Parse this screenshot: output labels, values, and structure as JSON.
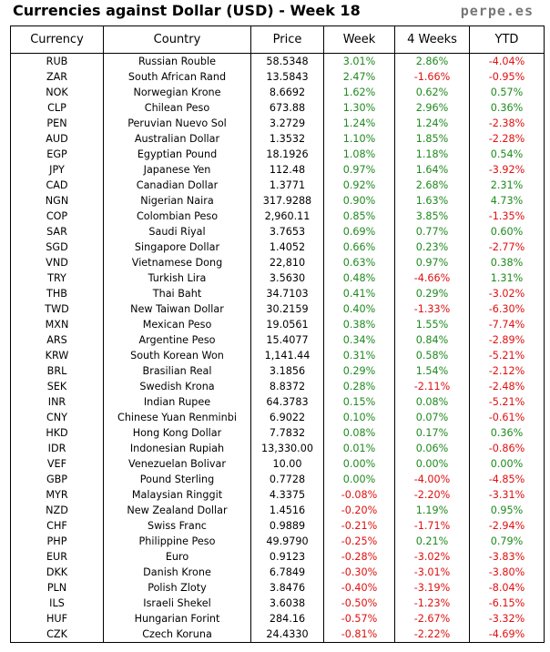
{
  "header": {
    "title": "Currencies against Dollar (USD) - Week 18",
    "brand": "perpe.es"
  },
  "table": {
    "columns": [
      "Currency",
      "Country",
      "Price",
      "Week",
      "4 Weeks",
      "YTD"
    ],
    "rows": [
      {
        "code": "RUB",
        "country": "Russian Rouble",
        "price": "58.5348",
        "week": "3.01%",
        "weeks4": "2.86%",
        "ytd": "-4.04%"
      },
      {
        "code": "ZAR",
        "country": "South African Rand",
        "price": "13.5843",
        "week": "2.47%",
        "weeks4": "-1.66%",
        "ytd": "-0.95%"
      },
      {
        "code": "NOK",
        "country": "Norwegian Krone",
        "price": "8.6692",
        "week": "1.62%",
        "weeks4": "0.62%",
        "ytd": "0.57%"
      },
      {
        "code": "CLP",
        "country": "Chilean Peso",
        "price": "673.88",
        "week": "1.30%",
        "weeks4": "2.96%",
        "ytd": "0.36%"
      },
      {
        "code": "PEN",
        "country": "Peruvian Nuevo Sol",
        "price": "3.2729",
        "week": "1.24%",
        "weeks4": "1.24%",
        "ytd": "-2.38%"
      },
      {
        "code": "AUD",
        "country": "Australian Dollar",
        "price": "1.3532",
        "week": "1.10%",
        "weeks4": "1.85%",
        "ytd": "-2.28%"
      },
      {
        "code": "EGP",
        "country": "Egyptian Pound",
        "price": "18.1926",
        "week": "1.08%",
        "weeks4": "1.18%",
        "ytd": "0.54%"
      },
      {
        "code": "JPY",
        "country": "Japanese Yen",
        "price": "112.48",
        "week": "0.97%",
        "weeks4": "1.64%",
        "ytd": "-3.92%"
      },
      {
        "code": "CAD",
        "country": "Canadian Dollar",
        "price": "1.3771",
        "week": "0.92%",
        "weeks4": "2.68%",
        "ytd": "2.31%"
      },
      {
        "code": "NGN",
        "country": "Nigerian Naira",
        "price": "317.9288",
        "week": "0.90%",
        "weeks4": "1.63%",
        "ytd": "4.73%"
      },
      {
        "code": "COP",
        "country": "Colombian Peso",
        "price": "2,960.11",
        "week": "0.85%",
        "weeks4": "3.85%",
        "ytd": "-1.35%"
      },
      {
        "code": "SAR",
        "country": "Saudi Riyal",
        "price": "3.7653",
        "week": "0.69%",
        "weeks4": "0.77%",
        "ytd": "0.60%"
      },
      {
        "code": "SGD",
        "country": "Singapore Dollar",
        "price": "1.4052",
        "week": "0.66%",
        "weeks4": "0.23%",
        "ytd": "-2.77%"
      },
      {
        "code": "VND",
        "country": "Vietnamese Dong",
        "price": "22,810",
        "week": "0.63%",
        "weeks4": "0.97%",
        "ytd": "0.38%"
      },
      {
        "code": "TRY",
        "country": "Turkish Lira",
        "price": "3.5630",
        "week": "0.48%",
        "weeks4": "-4.66%",
        "ytd": "1.31%"
      },
      {
        "code": "THB",
        "country": "Thai Baht",
        "price": "34.7103",
        "week": "0.41%",
        "weeks4": "0.29%",
        "ytd": "-3.02%"
      },
      {
        "code": "TWD",
        "country": "New Taiwan Dollar",
        "price": "30.2159",
        "week": "0.40%",
        "weeks4": "-1.33%",
        "ytd": "-6.30%"
      },
      {
        "code": "MXN",
        "country": "Mexican Peso",
        "price": "19.0561",
        "week": "0.38%",
        "weeks4": "1.55%",
        "ytd": "-7.74%"
      },
      {
        "code": "ARS",
        "country": "Argentine Peso",
        "price": "15.4077",
        "week": "0.34%",
        "weeks4": "0.84%",
        "ytd": "-2.89%"
      },
      {
        "code": "KRW",
        "country": "South Korean Won",
        "price": "1,141.44",
        "week": "0.31%",
        "weeks4": "0.58%",
        "ytd": "-5.21%"
      },
      {
        "code": "BRL",
        "country": "Brasilian Real",
        "price": "3.1856",
        "week": "0.29%",
        "weeks4": "1.54%",
        "ytd": "-2.12%"
      },
      {
        "code": "SEK",
        "country": "Swedish Krona",
        "price": "8.8372",
        "week": "0.28%",
        "weeks4": "-2.11%",
        "ytd": "-2.48%"
      },
      {
        "code": "INR",
        "country": "Indian Rupee",
        "price": "64.3783",
        "week": "0.15%",
        "weeks4": "0.08%",
        "ytd": "-5.21%"
      },
      {
        "code": "CNY",
        "country": "Chinese Yuan Renminbi",
        "price": "6.9022",
        "week": "0.10%",
        "weeks4": "0.07%",
        "ytd": "-0.61%"
      },
      {
        "code": "HKD",
        "country": "Hong Kong Dollar",
        "price": "7.7832",
        "week": "0.08%",
        "weeks4": "0.17%",
        "ytd": "0.36%"
      },
      {
        "code": "IDR",
        "country": "Indonesian Rupiah",
        "price": "13,330.00",
        "week": "0.01%",
        "weeks4": "0.06%",
        "ytd": "-0.86%"
      },
      {
        "code": "VEF",
        "country": "Venezuelan Bolivar",
        "price": "10.00",
        "week": "0.00%",
        "weeks4": "0.00%",
        "ytd": "0.00%"
      },
      {
        "code": "GBP",
        "country": "Pound Sterling",
        "price": "0.7728",
        "week": "0.00%",
        "weeks4": "-4.00%",
        "ytd": "-4.85%"
      },
      {
        "code": "MYR",
        "country": "Malaysian Ringgit",
        "price": "4.3375",
        "week": "-0.08%",
        "weeks4": "-2.20%",
        "ytd": "-3.31%"
      },
      {
        "code": "NZD",
        "country": "New Zealand Dollar",
        "price": "1.4516",
        "week": "-0.20%",
        "weeks4": "1.19%",
        "ytd": "0.95%"
      },
      {
        "code": "CHF",
        "country": "Swiss Franc",
        "price": "0.9889",
        "week": "-0.21%",
        "weeks4": "-1.71%",
        "ytd": "-2.94%"
      },
      {
        "code": "PHP",
        "country": "Philippine Peso",
        "price": "49.9790",
        "week": "-0.25%",
        "weeks4": "0.21%",
        "ytd": "0.79%"
      },
      {
        "code": "EUR",
        "country": "Euro",
        "price": "0.9123",
        "week": "-0.28%",
        "weeks4": "-3.02%",
        "ytd": "-3.83%"
      },
      {
        "code": "DKK",
        "country": "Danish Krone",
        "price": "6.7849",
        "week": "-0.30%",
        "weeks4": "-3.01%",
        "ytd": "-3.80%"
      },
      {
        "code": "PLN",
        "country": "Polish Zloty",
        "price": "3.8476",
        "week": "-0.40%",
        "weeks4": "-3.19%",
        "ytd": "-8.04%"
      },
      {
        "code": "ILS",
        "country": "Israeli Shekel",
        "price": "3.6038",
        "week": "-0.50%",
        "weeks4": "-1.23%",
        "ytd": "-6.15%"
      },
      {
        "code": "HUF",
        "country": "Hungarian Forint",
        "price": "284.16",
        "week": "-0.57%",
        "weeks4": "-2.67%",
        "ytd": "-3.32%"
      },
      {
        "code": "CZK",
        "country": "Czech Koruna",
        "price": "24.4330",
        "week": "-0.81%",
        "weeks4": "-2.22%",
        "ytd": "-4.69%"
      }
    ]
  },
  "colors": {
    "positive": "#1f8a1f",
    "negative": "#e01010"
  }
}
